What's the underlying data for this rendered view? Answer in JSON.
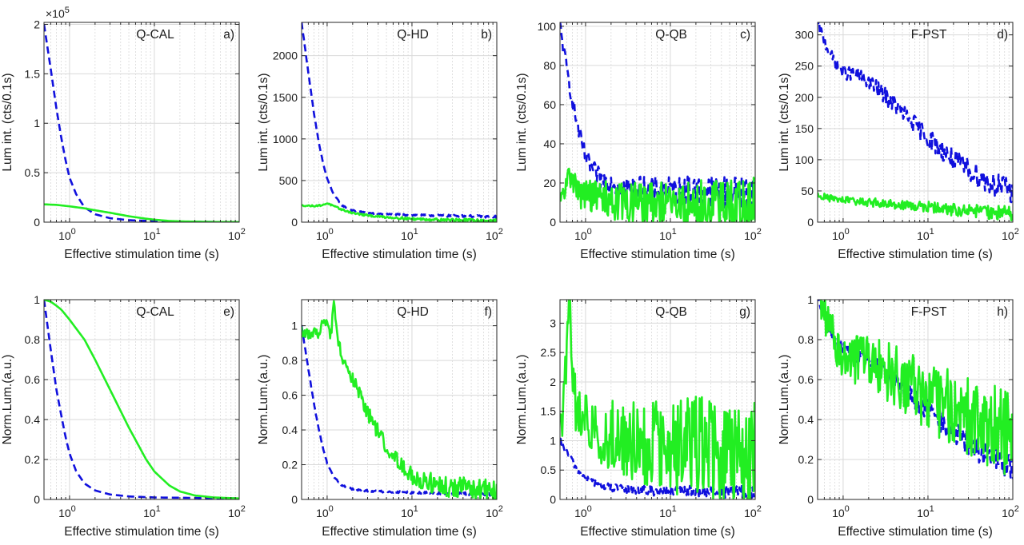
{
  "figure": {
    "colors": {
      "blue_series": "#1010dd",
      "green_series": "#22ee22",
      "axis": "#262626",
      "grid": "#d9d9d9"
    },
    "x_scale": "log",
    "x_tick_base": "10",
    "common_xlabel": "Effective stimulation time (s)"
  },
  "chart_data": [
    {
      "id": "a",
      "type": "line",
      "title": "Q-CAL",
      "panel_label": "a)",
      "xlabel": "Effective stimulation time (s)",
      "ylabel": "Lum int. (cts/0.1s)",
      "x_scale": "log",
      "xlim": [
        0.5,
        100
      ],
      "x_ticks": [
        1,
        10,
        100
      ],
      "x_tick_labels": [
        {
          "base": "10",
          "exp": "0"
        },
        {
          "base": "10",
          "exp": "1"
        },
        {
          "base": "10",
          "exp": "2"
        }
      ],
      "ylim": [
        0,
        2.02
      ],
      "y_ticks": [
        0,
        0.5,
        1,
        1.5,
        2
      ],
      "y_tick_labels": [
        "0",
        "0.5",
        "1",
        "1.5",
        "2"
      ],
      "y_exponent": {
        "prefix": "×10",
        "exp": "5"
      },
      "grid": true,
      "series": [
        {
          "style": "dashed",
          "color": "#1010dd",
          "x": [
            0.5,
            0.6,
            0.7,
            0.8,
            0.9,
            1.0,
            1.2,
            1.5,
            2,
            3,
            5,
            10,
            20,
            50,
            100
          ],
          "y": [
            2.0,
            1.55,
            1.15,
            0.85,
            0.62,
            0.45,
            0.28,
            0.15,
            0.08,
            0.04,
            0.02,
            0.01,
            0.005,
            0.002,
            0.001
          ],
          "noise": 0
        },
        {
          "style": "solid",
          "color": "#22ee22",
          "x": [
            0.5,
            0.7,
            1.0,
            1.5,
            2,
            3,
            5,
            8,
            10,
            15,
            20,
            50,
            100
          ],
          "y": [
            0.18,
            0.175,
            0.16,
            0.14,
            0.12,
            0.095,
            0.06,
            0.035,
            0.025,
            0.012,
            0.008,
            0.002,
            0.001
          ],
          "noise": 0
        }
      ]
    },
    {
      "id": "b",
      "type": "line",
      "title": "Q-HD",
      "panel_label": "b)",
      "xlabel": "Effective stimulation time (s)",
      "ylabel": "Lum int. (cts/0.1s)",
      "x_scale": "log",
      "xlim": [
        0.5,
        100
      ],
      "x_ticks": [
        1,
        10,
        100
      ],
      "x_tick_labels": [
        {
          "base": "10",
          "exp": "0"
        },
        {
          "base": "10",
          "exp": "1"
        },
        {
          "base": "10",
          "exp": "2"
        }
      ],
      "ylim": [
        0,
        2400
      ],
      "y_ticks": [
        0,
        500,
        1000,
        1500,
        2000
      ],
      "y_tick_labels": [
        "0",
        "500",
        "1000",
        "1500",
        "2000"
      ],
      "grid": true,
      "series": [
        {
          "style": "dashed",
          "color": "#1010dd",
          "x": [
            0.5,
            0.6,
            0.7,
            0.8,
            0.9,
            1.0,
            1.2,
            1.5,
            2,
            3,
            5,
            10,
            20,
            50,
            100
          ],
          "y": [
            2400,
            1800,
            1300,
            950,
            700,
            520,
            330,
            200,
            140,
            110,
            95,
            85,
            80,
            72,
            65
          ],
          "noise": 6
        },
        {
          "style": "solid",
          "color": "#22ee22",
          "x": [
            0.5,
            0.7,
            0.9,
            1.0,
            1.2,
            1.5,
            2,
            3,
            5,
            10,
            20,
            50,
            100
          ],
          "y": [
            200,
            195,
            205,
            230,
            190,
            150,
            110,
            80,
            60,
            40,
            30,
            22,
            18
          ],
          "noise": 8
        }
      ]
    },
    {
      "id": "c",
      "type": "line",
      "title": "Q-QB",
      "panel_label": "c)",
      "xlabel": "Effective stimulation time (s)",
      "ylabel": "Lum int. (cts/0.1s)",
      "x_scale": "log",
      "xlim": [
        0.5,
        100
      ],
      "x_ticks": [
        1,
        10,
        100
      ],
      "x_tick_labels": [
        {
          "base": "10",
          "exp": "0"
        },
        {
          "base": "10",
          "exp": "1"
        },
        {
          "base": "10",
          "exp": "2"
        }
      ],
      "ylim": [
        0,
        102
      ],
      "y_ticks": [
        0,
        20,
        40,
        60,
        80,
        100
      ],
      "y_tick_labels": [
        "0",
        "20",
        "40",
        "60",
        "80",
        "100"
      ],
      "grid": true,
      "series": [
        {
          "style": "dashed",
          "color": "#1010dd",
          "x": [
            0.5,
            0.6,
            0.7,
            0.8,
            0.9,
            1.0,
            1.2,
            1.5,
            2,
            3,
            5,
            10,
            20,
            50,
            100
          ],
          "y": [
            100,
            78,
            62,
            50,
            40,
            33,
            27,
            22,
            20,
            18,
            17,
            16,
            16,
            15,
            15
          ],
          "noise": 4
        },
        {
          "style": "solid",
          "color": "#22ee22",
          "x": [
            0.5,
            0.6,
            0.7,
            0.8,
            1.0,
            1.5,
            2,
            3,
            5,
            10,
            20,
            50,
            100
          ],
          "y": [
            8,
            20,
            25,
            15,
            14,
            13,
            11,
            10,
            9,
            8,
            8,
            7,
            7
          ],
          "noise": 7
        }
      ]
    },
    {
      "id": "d",
      "type": "line",
      "title": "F-PST",
      "panel_label": "d)",
      "xlabel": "Effective stimulation time (s)",
      "ylabel": "Lum int. (cts/0.1s)",
      "x_scale": "log",
      "xlim": [
        0.5,
        100
      ],
      "x_ticks": [
        1,
        10,
        100
      ],
      "x_tick_labels": [
        {
          "base": "10",
          "exp": "0"
        },
        {
          "base": "10",
          "exp": "1"
        },
        {
          "base": "10",
          "exp": "2"
        }
      ],
      "ylim": [
        0,
        320
      ],
      "y_ticks": [
        0,
        50,
        100,
        150,
        200,
        250,
        300
      ],
      "y_tick_labels": [
        "0",
        "50",
        "100",
        "150",
        "200",
        "250",
        "300"
      ],
      "grid": true,
      "series": [
        {
          "style": "dashed",
          "color": "#1010dd",
          "x": [
            0.5,
            0.6,
            0.7,
            0.8,
            1.0,
            1.5,
            2,
            3,
            5,
            10,
            20,
            50,
            100
          ],
          "y": [
            320,
            290,
            270,
            255,
            240,
            235,
            225,
            205,
            175,
            135,
            100,
            65,
            50
          ],
          "noise": 9
        },
        {
          "style": "solid",
          "color": "#22ee22",
          "x": [
            0.5,
            0.7,
            1.0,
            1.5,
            2,
            3,
            5,
            10,
            20,
            50,
            100
          ],
          "y": [
            44,
            38,
            35,
            33,
            32,
            30,
            28,
            24,
            20,
            16,
            14
          ],
          "noise": 5
        }
      ]
    },
    {
      "id": "e",
      "type": "line",
      "title": "Q-CAL",
      "panel_label": "e)",
      "xlabel": "Effective stimulation time (s)",
      "ylabel": "Norm.Lum.(a.u.)",
      "x_scale": "log",
      "xlim": [
        0.5,
        100
      ],
      "x_ticks": [
        1,
        10,
        100
      ],
      "x_tick_labels": [
        {
          "base": "10",
          "exp": "0"
        },
        {
          "base": "10",
          "exp": "1"
        },
        {
          "base": "10",
          "exp": "2"
        }
      ],
      "ylim": [
        0,
        1
      ],
      "y_ticks": [
        0,
        0.2,
        0.4,
        0.6,
        0.8,
        1
      ],
      "y_tick_labels": [
        "0",
        "0.2",
        "0.4",
        "0.6",
        "0.8",
        "1"
      ],
      "grid": true,
      "series": [
        {
          "style": "dashed",
          "color": "#1010dd",
          "x": [
            0.5,
            0.6,
            0.7,
            0.8,
            0.9,
            1.0,
            1.2,
            1.5,
            2,
            3,
            5,
            10,
            100
          ],
          "y": [
            1.0,
            0.75,
            0.55,
            0.42,
            0.31,
            0.23,
            0.14,
            0.08,
            0.045,
            0.025,
            0.015,
            0.01,
            0.005
          ],
          "noise": 0
        },
        {
          "style": "solid",
          "color": "#22ee22",
          "x": [
            0.5,
            0.6,
            0.7,
            0.8,
            1.0,
            1.5,
            2,
            3,
            5,
            8,
            10,
            15,
            20,
            30,
            50,
            100
          ],
          "y": [
            1.0,
            0.99,
            0.97,
            0.95,
            0.9,
            0.8,
            0.7,
            0.55,
            0.36,
            0.2,
            0.14,
            0.07,
            0.04,
            0.02,
            0.01,
            0.005
          ],
          "noise": 0
        }
      ]
    },
    {
      "id": "f",
      "type": "line",
      "title": "Q-HD",
      "panel_label": "f)",
      "xlabel": "Effective stimulation time (s)",
      "ylabel": "Norm.Lum.(a.u.)",
      "x_scale": "log",
      "xlim": [
        0.5,
        100
      ],
      "x_ticks": [
        1,
        10,
        100
      ],
      "x_tick_labels": [
        {
          "base": "10",
          "exp": "0"
        },
        {
          "base": "10",
          "exp": "1"
        },
        {
          "base": "10",
          "exp": "2"
        }
      ],
      "ylim": [
        0,
        1.15
      ],
      "y_ticks": [
        0,
        0.2,
        0.4,
        0.6,
        0.8,
        1
      ],
      "y_tick_labels": [
        "0",
        "0.2",
        "0.4",
        "0.6",
        "0.8",
        "1"
      ],
      "grid": true,
      "series": [
        {
          "style": "dashed",
          "color": "#1010dd",
          "x": [
            0.5,
            0.6,
            0.7,
            0.8,
            0.9,
            1.0,
            1.2,
            1.5,
            2,
            3,
            5,
            10,
            100
          ],
          "y": [
            1.0,
            0.75,
            0.55,
            0.4,
            0.29,
            0.21,
            0.13,
            0.08,
            0.06,
            0.05,
            0.045,
            0.04,
            0.03
          ],
          "noise": 0.004
        },
        {
          "style": "solid",
          "color": "#22ee22",
          "x": [
            0.5,
            0.6,
            0.7,
            0.8,
            0.9,
            1.0,
            1.1,
            1.2,
            1.3,
            1.5,
            2,
            3,
            5,
            10,
            20,
            50,
            100
          ],
          "y": [
            0.97,
            0.95,
            0.96,
            0.94,
            1.02,
            1.03,
            0.93,
            1.12,
            0.95,
            0.82,
            0.7,
            0.5,
            0.3,
            0.14,
            0.08,
            0.06,
            0.05
          ],
          "noise": 0.03
        }
      ]
    },
    {
      "id": "g",
      "type": "line",
      "title": "Q-QB",
      "panel_label": "g)",
      "xlabel": "Effective stimulation time (s)",
      "ylabel": "Norm.Lum.(a.u.)",
      "x_scale": "log",
      "xlim": [
        0.5,
        100
      ],
      "x_ticks": [
        1,
        10,
        100
      ],
      "x_tick_labels": [
        {
          "base": "10",
          "exp": "0"
        },
        {
          "base": "10",
          "exp": "1"
        },
        {
          "base": "10",
          "exp": "2"
        }
      ],
      "ylim": [
        0,
        3.4
      ],
      "y_ticks": [
        0,
        0.5,
        1,
        1.5,
        2,
        2.5,
        3
      ],
      "y_tick_labels": [
        "0",
        "0.5",
        "1",
        "1.5",
        "2",
        "2.5",
        "3"
      ],
      "grid": true,
      "series": [
        {
          "style": "dashed",
          "color": "#1010dd",
          "x": [
            0.5,
            0.6,
            0.7,
            0.8,
            1.0,
            1.5,
            2,
            3,
            5,
            10,
            100
          ],
          "y": [
            1.0,
            0.8,
            0.65,
            0.5,
            0.35,
            0.25,
            0.2,
            0.17,
            0.15,
            0.14,
            0.13
          ],
          "noise": 0.05
        },
        {
          "style": "solid",
          "color": "#22ee22",
          "x": [
            0.5,
            0.6,
            0.65,
            0.7,
            0.8,
            1.0,
            1.5,
            2,
            3,
            5,
            10,
            20,
            50,
            100
          ],
          "y": [
            1.0,
            2.5,
            3.3,
            2.0,
            1.4,
            1.3,
            1.2,
            1.1,
            1.0,
            0.95,
            0.9,
            0.9,
            0.85,
            0.85
          ],
          "noise": 0.45
        }
      ]
    },
    {
      "id": "h",
      "type": "line",
      "title": "F-PST",
      "panel_label": "h)",
      "xlabel": "Effective stimulation time (s)",
      "ylabel": "Norm.Lum.(a.u.)",
      "x_scale": "log",
      "xlim": [
        0.5,
        100
      ],
      "x_ticks": [
        1,
        10,
        100
      ],
      "x_tick_labels": [
        {
          "base": "10",
          "exp": "0"
        },
        {
          "base": "10",
          "exp": "1"
        },
        {
          "base": "10",
          "exp": "2"
        }
      ],
      "ylim": [
        0,
        1
      ],
      "y_ticks": [
        0,
        0.2,
        0.4,
        0.6,
        0.8,
        1
      ],
      "y_tick_labels": [
        "0",
        "0.2",
        "0.4",
        "0.6",
        "0.8",
        "1"
      ],
      "grid": true,
      "series": [
        {
          "style": "dashed",
          "color": "#1010dd",
          "x": [
            0.5,
            0.6,
            0.7,
            0.8,
            1.0,
            1.5,
            2,
            3,
            5,
            10,
            20,
            50,
            100
          ],
          "y": [
            1.0,
            0.92,
            0.85,
            0.8,
            0.76,
            0.72,
            0.7,
            0.65,
            0.55,
            0.45,
            0.33,
            0.22,
            0.16
          ],
          "noise": 0.03
        },
        {
          "style": "solid",
          "color": "#22ee22",
          "x": [
            0.5,
            0.6,
            0.7,
            0.8,
            1.0,
            1.5,
            2,
            3,
            5,
            10,
            20,
            50,
            100
          ],
          "y": [
            1.0,
            0.95,
            0.85,
            0.78,
            0.72,
            0.7,
            0.68,
            0.65,
            0.6,
            0.52,
            0.45,
            0.38,
            0.33
          ],
          "noise": 0.1
        }
      ]
    }
  ]
}
